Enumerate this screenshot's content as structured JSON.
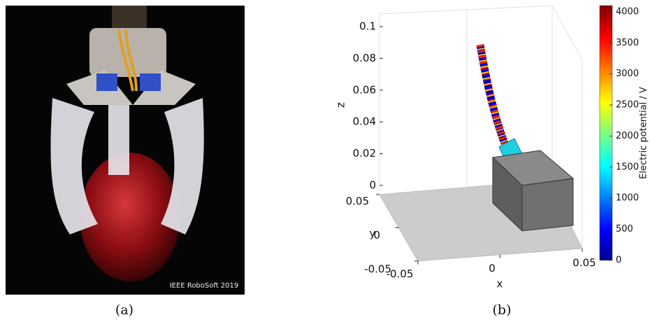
{
  "panel_a": {
    "watermark": "IEEE RoboSoft 2019",
    "caption": "(a)"
  },
  "panel_b": {
    "caption": "(b)",
    "xlabel": "x",
    "ylabel": "y",
    "zlabel": "z",
    "xlim": [
      -0.05,
      0.05
    ],
    "xticks": [
      -0.05,
      0,
      0.05
    ],
    "ylim": [
      -0.05,
      0.05
    ],
    "yticks": [
      -0.05,
      0,
      0.05
    ],
    "zlim": [
      0,
      0.1
    ],
    "zticks": [
      0,
      0.02,
      0.04,
      0.06,
      0.08,
      0.1
    ],
    "colorbar": {
      "label": "Electric potential / V",
      "lim": [
        0,
        4100
      ],
      "ticks": [
        0,
        500,
        1000,
        1500,
        2000,
        2500,
        3000,
        3500,
        4000
      ]
    }
  }
}
